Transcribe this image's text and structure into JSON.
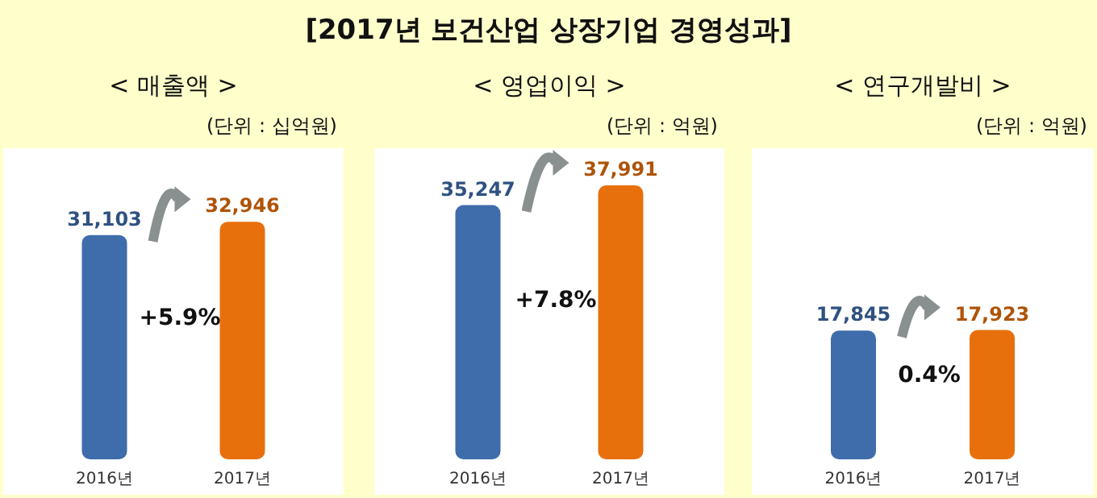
{
  "chart_data": [
    {
      "type": "bar",
      "title": "< 매출액 >",
      "subtitle": "(단위 : 십억원)",
      "categories": [
        "2016년",
        "2017년"
      ],
      "values": [
        31103,
        32946
      ],
      "colors": [
        "#3f6cab",
        "#e8700c"
      ],
      "value_labels": [
        "31,103",
        "32,946"
      ],
      "annotations": [
        "[2017년 보건산업 상장기업 경영성과]",
        "+5.9%"
      ]
    },
    {
      "type": "bar",
      "title": "< 영업이익 >",
      "subtitle": "(단위 : 억원)",
      "categories": [
        "2016년",
        "2017년"
      ],
      "values": [
        35247,
        37991
      ],
      "colors": [
        "#3f6cab",
        "#e8700c"
      ],
      "value_labels": [
        "35,247",
        "37,991"
      ],
      "annotations": [
        "+7.8%"
      ]
    },
    {
      "type": "bar",
      "title": "< 연구개발비 >",
      "subtitle": "(단위 : 억원)",
      "categories": [
        "2016년",
        "2017년"
      ],
      "values": [
        17845,
        17923
      ],
      "colors": [
        "#3f6cab",
        "#e8700c"
      ],
      "value_labels": [
        "17,845",
        "17,923"
      ],
      "annotations": [
        "0.4%"
      ]
    }
  ]
}
